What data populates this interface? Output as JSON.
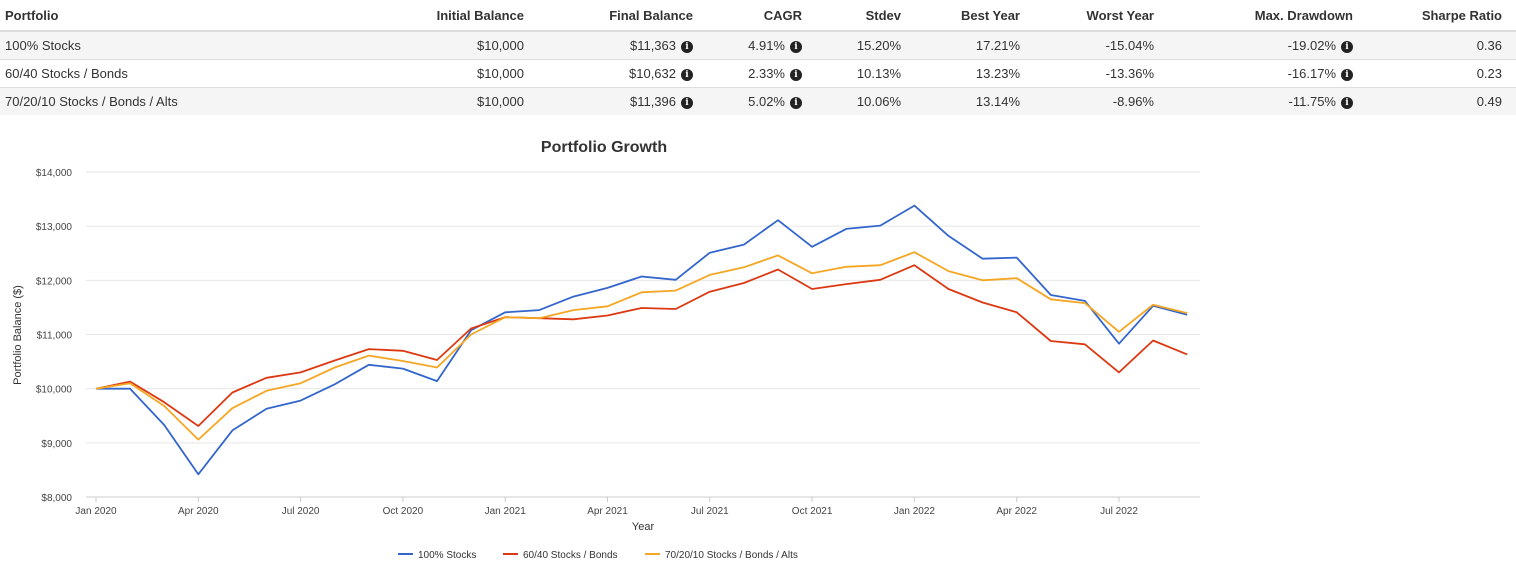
{
  "table": {
    "headers": [
      "Portfolio",
      "Initial Balance",
      "Final Balance",
      "CAGR",
      "Stdev",
      "Best Year",
      "Worst Year",
      "Max. Drawdown",
      "Sharpe Ratio"
    ],
    "rows": [
      {
        "portfolio": "100% Stocks",
        "initial_balance": "$10,000",
        "final_balance": "$11,363",
        "cagr": "4.91%",
        "stdev": "15.20%",
        "best_year": "17.21%",
        "worst_year": "-15.04%",
        "max_drawdown": "-19.02%",
        "sharpe_ratio": "0.36"
      },
      {
        "portfolio": "60/40 Stocks / Bonds",
        "initial_balance": "$10,000",
        "final_balance": "$10,632",
        "cagr": "2.33%",
        "stdev": "10.13%",
        "best_year": "13.23%",
        "worst_year": "-13.36%",
        "max_drawdown": "-16.17%",
        "sharpe_ratio": "0.23"
      },
      {
        "portfolio": "70/20/10 Stocks / Bonds / Alts",
        "initial_balance": "$10,000",
        "final_balance": "$11,396",
        "cagr": "5.02%",
        "stdev": "10.06%",
        "best_year": "13.14%",
        "worst_year": "-8.96%",
        "max_drawdown": "-11.75%",
        "sharpe_ratio": "0.49"
      }
    ],
    "info_icon": "info-circle-icon"
  },
  "chart_data": {
    "type": "line",
    "title": "Portfolio Growth",
    "xlabel": "Year",
    "ylabel": "Portfolio Balance ($)",
    "ylim": [
      8000,
      14000
    ],
    "yticks": [
      8000,
      9000,
      10000,
      11000,
      12000,
      13000,
      14000
    ],
    "ytick_labels": [
      "$8,000",
      "$9,000",
      "$10,000",
      "$11,000",
      "$12,000",
      "$13,000",
      "$14,000"
    ],
    "x": [
      "2020-01",
      "2020-02",
      "2020-03",
      "2020-04",
      "2020-05",
      "2020-06",
      "2020-07",
      "2020-08",
      "2020-09",
      "2020-10",
      "2020-11",
      "2020-12",
      "2021-01",
      "2021-02",
      "2021-03",
      "2021-04",
      "2021-05",
      "2021-06",
      "2021-07",
      "2021-08",
      "2021-09",
      "2021-10",
      "2021-11",
      "2021-12",
      "2022-01",
      "2022-02",
      "2022-03",
      "2022-04",
      "2022-05",
      "2022-06",
      "2022-07",
      "2022-08",
      "2022-09"
    ],
    "xticks": [
      {
        "index": 0,
        "label": "Jan 2020"
      },
      {
        "index": 3,
        "label": "Apr 2020"
      },
      {
        "index": 6,
        "label": "Jul 2020"
      },
      {
        "index": 9,
        "label": "Oct 2020"
      },
      {
        "index": 12,
        "label": "Jan 2021"
      },
      {
        "index": 15,
        "label": "Apr 2021"
      },
      {
        "index": 18,
        "label": "Jul 2021"
      },
      {
        "index": 21,
        "label": "Oct 2021"
      },
      {
        "index": 24,
        "label": "Jan 2022"
      },
      {
        "index": 27,
        "label": "Apr 2022"
      },
      {
        "index": 30,
        "label": "Jul 2022"
      }
    ],
    "grid": true,
    "legend": "bottom",
    "series": [
      {
        "name": "100% Stocks",
        "color": "#3366cc",
        "values": [
          10000,
          10000,
          9330,
          8420,
          9230,
          9630,
          9780,
          10080,
          10440,
          10370,
          10140,
          11080,
          11410,
          11450,
          11700,
          11860,
          12070,
          12010,
          12510,
          12660,
          13110,
          12620,
          12950,
          13010,
          13380,
          12820,
          12400,
          12420,
          11730,
          11620,
          10830,
          11530,
          11363
        ]
      },
      {
        "name": "60/40 Stocks / Bonds",
        "color": "#dc3912",
        "values": [
          10000,
          10130,
          9750,
          9310,
          9930,
          10200,
          10300,
          10520,
          10730,
          10700,
          10530,
          11110,
          11320,
          11300,
          11280,
          11350,
          11490,
          11470,
          11790,
          11950,
          12200,
          11840,
          11930,
          12010,
          12280,
          11840,
          11590,
          11410,
          10880,
          10820,
          10300,
          10890,
          10632
        ]
      },
      {
        "name": "70/20/10 Stocks / Bonds / Alts",
        "color": "#f5a623",
        "values": [
          10000,
          10100,
          9680,
          9060,
          9640,
          9960,
          10100,
          10390,
          10610,
          10510,
          10390,
          11000,
          11320,
          11300,
          11450,
          11520,
          11780,
          11810,
          12100,
          12240,
          12460,
          12130,
          12250,
          12280,
          12520,
          12170,
          12000,
          12040,
          11650,
          11580,
          11050,
          11550,
          11396
        ]
      }
    ]
  }
}
